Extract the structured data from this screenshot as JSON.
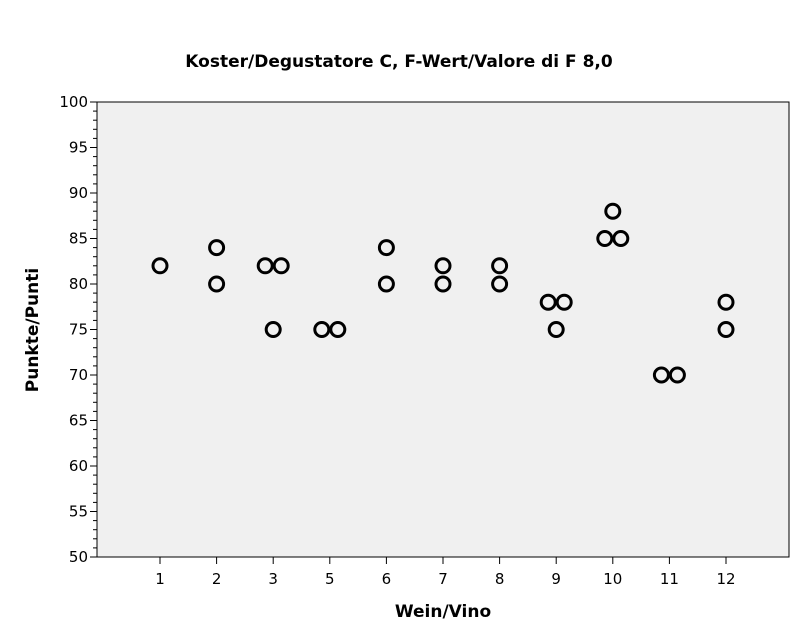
{
  "chart_data": {
    "type": "scatter",
    "title": "Koster/Degustatore C, F-Wert/Valore di F 8,0",
    "xlabel": "Wein/Vino",
    "ylabel": "Punkte/Punti",
    "ylim": [
      50,
      100
    ],
    "yticks": [
      50,
      55,
      60,
      65,
      70,
      75,
      80,
      85,
      90,
      95,
      100
    ],
    "categories": [
      "1",
      "2",
      "3",
      "5",
      "6",
      "7",
      "8",
      "9",
      "10",
      "11",
      "12"
    ],
    "points": [
      {
        "x": "1",
        "y": 82
      },
      {
        "x": "2",
        "y": 84
      },
      {
        "x": "2",
        "y": 80
      },
      {
        "x": "3",
        "y": 82
      },
      {
        "x": "3",
        "y": 82
      },
      {
        "x": "3",
        "y": 75
      },
      {
        "x": "5",
        "y": 75
      },
      {
        "x": "5",
        "y": 75
      },
      {
        "x": "6",
        "y": 84
      },
      {
        "x": "6",
        "y": 80
      },
      {
        "x": "7",
        "y": 82
      },
      {
        "x": "7",
        "y": 80
      },
      {
        "x": "8",
        "y": 82
      },
      {
        "x": "8",
        "y": 80
      },
      {
        "x": "9",
        "y": 78
      },
      {
        "x": "9",
        "y": 78
      },
      {
        "x": "9",
        "y": 75
      },
      {
        "x": "10",
        "y": 88
      },
      {
        "x": "10",
        "y": 85
      },
      {
        "x": "10",
        "y": 85
      },
      {
        "x": "11",
        "y": 70
      },
      {
        "x": "11",
        "y": 70
      },
      {
        "x": "12",
        "y": 78
      },
      {
        "x": "12",
        "y": 75
      }
    ],
    "grid": false,
    "legend": "none",
    "colors": {
      "background": "#f0f0f0",
      "marker": "#000000"
    }
  }
}
